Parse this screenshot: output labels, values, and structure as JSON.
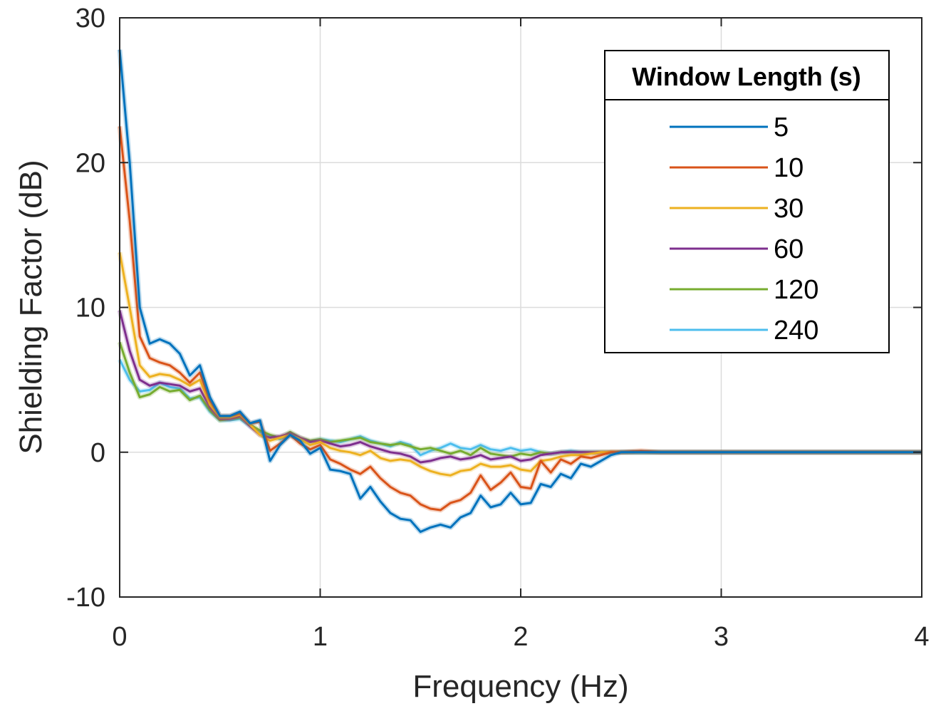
{
  "chart_data": {
    "type": "line",
    "title": "",
    "xlabel": "Frequency (Hz)",
    "ylabel": "Shielding Factor (dB)",
    "xlim": [
      0,
      4
    ],
    "ylim": [
      -10,
      30
    ],
    "xticks": [
      0,
      1,
      2,
      3,
      4
    ],
    "xtick_labels": [
      "0",
      "1",
      "2",
      "3",
      "4"
    ],
    "yticks": [
      -10,
      0,
      10,
      20,
      30
    ],
    "ytick_labels": [
      "-10",
      "0",
      "10",
      "20",
      "30"
    ],
    "grid": true,
    "legend": {
      "title": "Window Length (s)",
      "placement": "top-right"
    },
    "series": [
      {
        "name": "5",
        "color": "#0072BD",
        "x": [
          0,
          0.05,
          0.1,
          0.15,
          0.2,
          0.25,
          0.3,
          0.35,
          0.4,
          0.45,
          0.5,
          0.55,
          0.6,
          0.65,
          0.7,
          0.75,
          0.8,
          0.85,
          0.9,
          0.95,
          1.0,
          1.05,
          1.1,
          1.15,
          1.2,
          1.25,
          1.3,
          1.35,
          1.4,
          1.45,
          1.5,
          1.55,
          1.6,
          1.65,
          1.7,
          1.75,
          1.8,
          1.85,
          1.9,
          1.95,
          2.0,
          2.05,
          2.1,
          2.15,
          2.2,
          2.25,
          2.3,
          2.35,
          2.4,
          2.45,
          2.5,
          2.6,
          2.7,
          2.8,
          3.0,
          3.5,
          4.0
        ],
        "y": [
          27.8,
          20,
          10,
          7.5,
          7.8,
          7.5,
          6.8,
          5.3,
          6,
          3.8,
          2.5,
          2.5,
          2.8,
          2,
          2.2,
          -0.6,
          0.5,
          1.2,
          0.8,
          -0.1,
          0.3,
          -1.2,
          -1.3,
          -1.5,
          -3.2,
          -2.4,
          -3.4,
          -4.2,
          -4.6,
          -4.7,
          -5.5,
          -5.2,
          -5,
          -5.2,
          -4.5,
          -4.2,
          -3,
          -3.8,
          -3.6,
          -2.8,
          -3.6,
          -3.5,
          -2.2,
          -2.4,
          -1.5,
          -1.8,
          -0.8,
          -1,
          -0.6,
          -0.2,
          0,
          0,
          0,
          0,
          0,
          0,
          0
        ]
      },
      {
        "name": "10",
        "color": "#D95319",
        "x": [
          0,
          0.05,
          0.1,
          0.15,
          0.2,
          0.25,
          0.3,
          0.35,
          0.4,
          0.45,
          0.5,
          0.55,
          0.6,
          0.65,
          0.7,
          0.75,
          0.8,
          0.85,
          0.9,
          0.95,
          1.0,
          1.05,
          1.1,
          1.15,
          1.2,
          1.25,
          1.3,
          1.35,
          1.4,
          1.45,
          1.5,
          1.55,
          1.6,
          1.65,
          1.7,
          1.75,
          1.8,
          1.85,
          1.9,
          1.95,
          2.0,
          2.05,
          2.1,
          2.15,
          2.2,
          2.25,
          2.3,
          2.35,
          2.4,
          2.45,
          2.5,
          2.6,
          2.7,
          2.8,
          3.0,
          3.5,
          4.0
        ],
        "y": [
          22.5,
          16,
          8,
          6.5,
          6.2,
          6,
          5.5,
          4.8,
          5.5,
          3.6,
          2.5,
          2.5,
          2.7,
          2,
          2.1,
          0.1,
          0.6,
          1.2,
          0.6,
          0.2,
          0.5,
          -0.5,
          -0.8,
          -1.2,
          -1.5,
          -1,
          -1.8,
          -2.4,
          -2.8,
          -3,
          -3.6,
          -3.9,
          -4,
          -3.5,
          -3.3,
          -2.8,
          -1.6,
          -2.6,
          -2.1,
          -1.4,
          -2.4,
          -2.5,
          -0.6,
          -1.4,
          -0.5,
          -0.8,
          -0.3,
          -0.4,
          -0.2,
          0,
          0,
          0.1,
          0,
          0,
          0,
          0,
          0
        ]
      },
      {
        "name": "30",
        "color": "#EDB120",
        "x": [
          0,
          0.05,
          0.1,
          0.15,
          0.2,
          0.25,
          0.3,
          0.35,
          0.4,
          0.45,
          0.5,
          0.55,
          0.6,
          0.65,
          0.7,
          0.75,
          0.8,
          0.85,
          0.9,
          0.95,
          1.0,
          1.05,
          1.1,
          1.15,
          1.2,
          1.25,
          1.3,
          1.35,
          1.4,
          1.45,
          1.5,
          1.55,
          1.6,
          1.65,
          1.7,
          1.75,
          1.8,
          1.85,
          1.9,
          1.95,
          2.0,
          2.05,
          2.1,
          2.15,
          2.2,
          2.25,
          2.3,
          2.35,
          2.4,
          2.45,
          2.5,
          2.6,
          2.7,
          2.8,
          3.0,
          3.5,
          4.0
        ],
        "y": [
          13.8,
          10,
          6,
          5.2,
          5.4,
          5.3,
          5,
          4.6,
          5,
          3.3,
          2.4,
          2.4,
          2.6,
          1.9,
          1.2,
          0.8,
          1,
          1.2,
          0.9,
          0.5,
          0.7,
          0.3,
          0.1,
          0,
          -0.2,
          0.1,
          -0.4,
          -0.6,
          -0.5,
          -0.6,
          -1,
          -1.3,
          -1.5,
          -1.6,
          -1.3,
          -1.2,
          -0.8,
          -1,
          -1,
          -0.9,
          -1.2,
          -1.3,
          -0.6,
          -0.5,
          -0.3,
          -0.2,
          -0.2,
          -0.1,
          0,
          0,
          0,
          0,
          0,
          0,
          0,
          0,
          0
        ]
      },
      {
        "name": "60",
        "color": "#7E2F8E",
        "x": [
          0,
          0.05,
          0.1,
          0.15,
          0.2,
          0.25,
          0.3,
          0.35,
          0.4,
          0.45,
          0.5,
          0.55,
          0.6,
          0.65,
          0.7,
          0.75,
          0.8,
          0.85,
          0.9,
          0.95,
          1.0,
          1.05,
          1.1,
          1.15,
          1.2,
          1.25,
          1.3,
          1.35,
          1.4,
          1.45,
          1.5,
          1.55,
          1.6,
          1.65,
          1.7,
          1.75,
          1.8,
          1.85,
          1.9,
          1.95,
          2.0,
          2.05,
          2.1,
          2.15,
          2.2,
          2.25,
          2.3,
          2.35,
          2.4,
          2.45,
          2.5,
          2.6,
          2.7,
          2.8,
          3.0,
          3.5,
          4.0
        ],
        "y": [
          9.8,
          7,
          5,
          4.6,
          4.8,
          4.7,
          4.6,
          4.2,
          4.4,
          3.1,
          2.3,
          2.3,
          2.5,
          1.8,
          1.2,
          1,
          1.1,
          1.3,
          1,
          0.7,
          0.8,
          0.6,
          0.4,
          0.5,
          0.7,
          0.4,
          0.2,
          0,
          -0.1,
          -0.3,
          -0.7,
          -0.6,
          -0.4,
          -0.3,
          -0.5,
          -0.4,
          -0.2,
          -0.5,
          -0.4,
          -0.3,
          -0.6,
          -0.5,
          -0.2,
          -0.1,
          0,
          0,
          0,
          0,
          0,
          0,
          0,
          0,
          0,
          0,
          0,
          0,
          0
        ]
      },
      {
        "name": "120",
        "color": "#77AC30",
        "x": [
          0,
          0.05,
          0.1,
          0.15,
          0.2,
          0.25,
          0.3,
          0.35,
          0.4,
          0.45,
          0.5,
          0.55,
          0.6,
          0.65,
          0.7,
          0.75,
          0.8,
          0.85,
          0.9,
          0.95,
          1.0,
          1.05,
          1.1,
          1.15,
          1.2,
          1.25,
          1.3,
          1.35,
          1.4,
          1.45,
          1.5,
          1.55,
          1.6,
          1.65,
          1.7,
          1.75,
          1.8,
          1.85,
          1.9,
          1.95,
          2.0,
          2.05,
          2.1,
          2.15,
          2.2,
          2.25,
          2.3,
          2.35,
          2.4,
          2.45,
          2.5,
          2.6,
          2.7,
          2.8,
          3.0,
          3.5,
          4.0
        ],
        "y": [
          7.6,
          5.5,
          3.8,
          4,
          4.5,
          4.2,
          4.3,
          3.6,
          3.9,
          2.9,
          2.2,
          2.3,
          2.4,
          1.9,
          1.5,
          1.2,
          1,
          1.4,
          1,
          0.8,
          0.9,
          0.7,
          0.8,
          0.9,
          1,
          0.7,
          0.6,
          0.5,
          0.6,
          0.4,
          0.2,
          0.3,
          0.1,
          -0.1,
          0.1,
          -0.2,
          0.3,
          -0.1,
          -0.2,
          -0.3,
          -0.1,
          -0.2,
          0,
          -0.1,
          0,
          0,
          0,
          0,
          0,
          0,
          0,
          0,
          0,
          0,
          0,
          0,
          0
        ]
      },
      {
        "name": "240",
        "color": "#4DBEEE",
        "x": [
          0,
          0.05,
          0.1,
          0.15,
          0.2,
          0.25,
          0.3,
          0.35,
          0.4,
          0.45,
          0.5,
          0.55,
          0.6,
          0.65,
          0.7,
          0.75,
          0.8,
          0.85,
          0.9,
          0.95,
          1.0,
          1.05,
          1.1,
          1.15,
          1.2,
          1.25,
          1.3,
          1.35,
          1.4,
          1.45,
          1.5,
          1.55,
          1.6,
          1.65,
          1.7,
          1.75,
          1.8,
          1.85,
          1.9,
          1.95,
          2.0,
          2.05,
          2.1,
          2.15,
          2.2,
          2.25,
          2.3,
          2.35,
          2.4,
          2.45,
          2.5,
          2.6,
          2.7,
          2.8,
          3.0,
          3.5,
          4.0
        ],
        "y": [
          6.4,
          5,
          4.2,
          4.3,
          4.8,
          4.5,
          4.4,
          3.7,
          3.8,
          2.8,
          2.2,
          2.2,
          2.3,
          1.8,
          1.4,
          1.1,
          0.9,
          1.2,
          0.9,
          0.7,
          0.9,
          0.8,
          0.7,
          0.9,
          1.1,
          0.8,
          0.6,
          0.4,
          0.7,
          0.5,
          -0.2,
          0.1,
          0.3,
          0.6,
          0.3,
          0.2,
          0.5,
          0.2,
          0.1,
          0.3,
          0.1,
          0.2,
          0,
          -0.1,
          0,
          0.1,
          0,
          0,
          0,
          0,
          0,
          0,
          0,
          0,
          0,
          0,
          0
        ]
      }
    ]
  }
}
